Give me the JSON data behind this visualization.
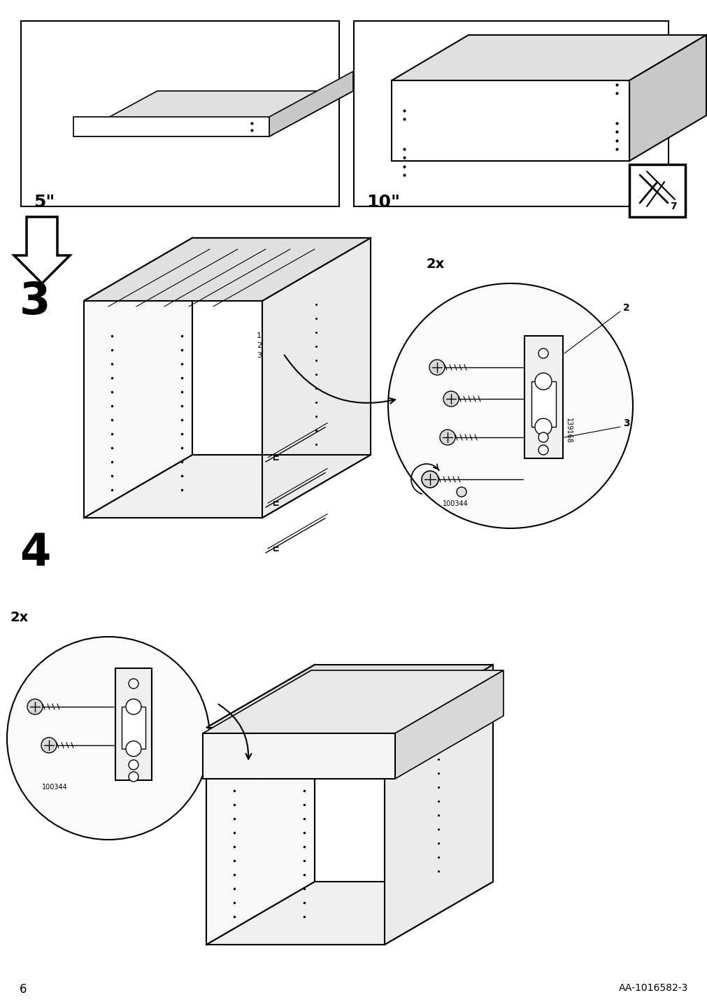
{
  "page_number": "6",
  "doc_ref": "AA-1016582-3",
  "bg": "#ffffff",
  "lc": "#000000",
  "step3_label": "3",
  "step4_label": "4",
  "panel1_label": "5\"",
  "panel2_label": "10\"",
  "qty_2x": "2x",
  "part_139168": "139168",
  "part_100344": "100344",
  "label_2": "2",
  "label_3": "3",
  "note_7": "7"
}
